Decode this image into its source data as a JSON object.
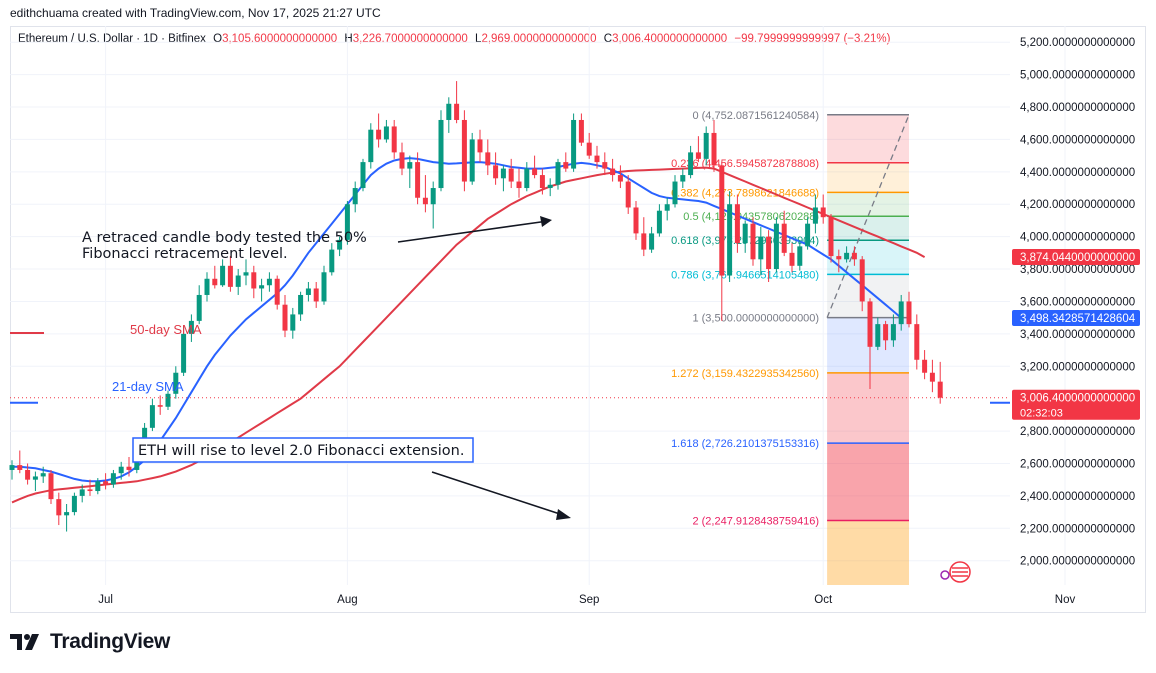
{
  "header": {
    "attribution": "edithchuama created with TradingView.com, Nov 17, 2025 21:27 UTC"
  },
  "legend": {
    "symbol": "Ethereum / U.S. Dollar · 1D · Bitfinex",
    "open_label": "O",
    "open": "3,105.6000000000000",
    "high_label": "H",
    "high": "3,226.7000000000000",
    "low_label": "L",
    "low": "2,969.0000000000000",
    "close_label": "C",
    "close": "3,006.4000000000000",
    "change": "−99.7999999999997 (−3.21%)"
  },
  "colors": {
    "up": "#089981",
    "down": "#f23645",
    "sma50": "#e03a48",
    "sma21": "#2962ff",
    "grid": "#f0f3fa",
    "text": "#131722"
  },
  "brand": {
    "name": "TradingView",
    "logo_icon": "tradingview-logo-icon"
  },
  "chart_data": {
    "type": "candlestick",
    "y_axis": {
      "ylim": [
        1850,
        5300
      ],
      "ticks": [
        {
          "value": 5200,
          "label": "5,200.0000000000000"
        },
        {
          "value": 5000,
          "label": "5,000.0000000000000"
        },
        {
          "value": 4800,
          "label": "4,800.0000000000000"
        },
        {
          "value": 4600,
          "label": "4,600.0000000000000"
        },
        {
          "value": 4400,
          "label": "4,400.0000000000000"
        },
        {
          "value": 4200,
          "label": "4,200.0000000000000"
        },
        {
          "value": 4000,
          "label": "4,000.0000000000000"
        },
        {
          "value": 3800,
          "label": "3,800.0000000000000"
        },
        {
          "value": 3600,
          "label": "3,600.0000000000000"
        },
        {
          "value": 3400,
          "label": "3,400.0000000000000"
        },
        {
          "value": 3200,
          "label": "3,200.0000000000000"
        },
        {
          "value": 2800,
          "label": "2,800.0000000000000"
        },
        {
          "value": 2600,
          "label": "2,600.0000000000000"
        },
        {
          "value": 2400,
          "label": "2,400.0000000000000"
        },
        {
          "value": 2200,
          "label": "2,200.0000000000000"
        },
        {
          "value": 2000,
          "label": "2,000.0000000000000"
        }
      ],
      "price_badges": [
        {
          "value": 3874,
          "label": "3,874.0440000000000",
          "color": "#f23645"
        },
        {
          "value": 3498,
          "label": "3,498.3428571428604",
          "color": "#2962ff"
        },
        {
          "value": 3006,
          "label": "3,006.4000000000000",
          "sublabel": "02:32:03",
          "color": "#f23645"
        }
      ]
    },
    "x_axis": {
      "ticks": [
        {
          "label": "Jul",
          "index": 12
        },
        {
          "label": "Aug",
          "index": 43
        },
        {
          "label": "Sep",
          "index": 74
        },
        {
          "label": "Oct",
          "index": 104
        },
        {
          "label": "Nov",
          "index": 135
        }
      ]
    },
    "candles": [
      [
        2560,
        2620,
        2500,
        2590
      ],
      [
        2590,
        2680,
        2540,
        2560
      ],
      [
        2560,
        2600,
        2470,
        2500
      ],
      [
        2500,
        2550,
        2430,
        2520
      ],
      [
        2520,
        2580,
        2480,
        2540
      ],
      [
        2540,
        2560,
        2350,
        2380
      ],
      [
        2380,
        2420,
        2220,
        2280
      ],
      [
        2280,
        2350,
        2180,
        2300
      ],
      [
        2300,
        2420,
        2280,
        2400
      ],
      [
        2400,
        2470,
        2360,
        2440
      ],
      [
        2440,
        2500,
        2400,
        2430
      ],
      [
        2430,
        2510,
        2410,
        2490
      ],
      [
        2490,
        2540,
        2440,
        2470
      ],
      [
        2470,
        2560,
        2450,
        2540
      ],
      [
        2540,
        2610,
        2500,
        2580
      ],
      [
        2580,
        2640,
        2520,
        2560
      ],
      [
        2560,
        2700,
        2540,
        2680
      ],
      [
        2680,
        2850,
        2650,
        2820
      ],
      [
        2820,
        3000,
        2800,
        2960
      ],
      [
        2960,
        3020,
        2900,
        2950
      ],
      [
        2950,
        3050,
        2930,
        3030
      ],
      [
        3030,
        3200,
        3000,
        3160
      ],
      [
        3160,
        3450,
        3140,
        3400
      ],
      [
        3400,
        3520,
        3350,
        3480
      ],
      [
        3480,
        3700,
        3460,
        3640
      ],
      [
        3640,
        3780,
        3600,
        3740
      ],
      [
        3740,
        3820,
        3680,
        3700
      ],
      [
        3700,
        3860,
        3690,
        3820
      ],
      [
        3820,
        3880,
        3660,
        3690
      ],
      [
        3690,
        3800,
        3640,
        3760
      ],
      [
        3760,
        3860,
        3700,
        3780
      ],
      [
        3780,
        3820,
        3620,
        3680
      ],
      [
        3680,
        3740,
        3600,
        3700
      ],
      [
        3700,
        3780,
        3660,
        3740
      ],
      [
        3740,
        3760,
        3550,
        3580
      ],
      [
        3580,
        3640,
        3380,
        3420
      ],
      [
        3420,
        3560,
        3370,
        3520
      ],
      [
        3520,
        3660,
        3480,
        3640
      ],
      [
        3640,
        3720,
        3600,
        3680
      ],
      [
        3680,
        3720,
        3560,
        3600
      ],
      [
        3600,
        3820,
        3580,
        3780
      ],
      [
        3780,
        3960,
        3760,
        3920
      ],
      [
        3920,
        4000,
        3880,
        3980
      ],
      [
        3980,
        4220,
        3950,
        4200
      ],
      [
        4200,
        4340,
        4150,
        4300
      ],
      [
        4300,
        4480,
        4280,
        4460
      ],
      [
        4460,
        4700,
        4420,
        4660
      ],
      [
        4660,
        4760,
        4550,
        4600
      ],
      [
        4600,
        4720,
        4580,
        4680
      ],
      [
        4680,
        4720,
        4480,
        4520
      ],
      [
        4520,
        4580,
        4380,
        4420
      ],
      [
        4420,
        4500,
        4300,
        4460
      ],
      [
        4460,
        4520,
        4200,
        4240
      ],
      [
        4240,
        4380,
        4150,
        4200
      ],
      [
        4200,
        4340,
        4050,
        4300
      ],
      [
        4300,
        4780,
        4280,
        4720
      ],
      [
        4720,
        4860,
        4640,
        4820
      ],
      [
        4820,
        4960,
        4700,
        4720
      ],
      [
        4720,
        4780,
        4280,
        4340
      ],
      [
        4340,
        4640,
        4320,
        4600
      ],
      [
        4600,
        4660,
        4460,
        4520
      ],
      [
        4520,
        4600,
        4380,
        4440
      ],
      [
        4440,
        4520,
        4320,
        4360
      ],
      [
        4360,
        4440,
        4280,
        4420
      ],
      [
        4420,
        4480,
        4300,
        4340
      ],
      [
        4340,
        4420,
        4240,
        4300
      ],
      [
        4300,
        4460,
        4280,
        4420
      ],
      [
        4420,
        4500,
        4360,
        4380
      ],
      [
        4380,
        4420,
        4260,
        4300
      ],
      [
        4300,
        4360,
        4250,
        4320
      ],
      [
        4320,
        4480,
        4290,
        4460
      ],
      [
        4460,
        4520,
        4400,
        4420
      ],
      [
        4420,
        4760,
        4400,
        4720
      ],
      [
        4720,
        4760,
        4560,
        4580
      ],
      [
        4580,
        4640,
        4480,
        4500
      ],
      [
        4500,
        4560,
        4420,
        4460
      ],
      [
        4460,
        4520,
        4380,
        4420
      ],
      [
        4420,
        4480,
        4340,
        4380
      ],
      [
        4380,
        4440,
        4300,
        4340
      ],
      [
        4340,
        4380,
        4140,
        4180
      ],
      [
        4180,
        4220,
        3980,
        4020
      ],
      [
        4020,
        4120,
        3880,
        3920
      ],
      [
        3920,
        4060,
        3900,
        4020
      ],
      [
        4020,
        4200,
        4000,
        4160
      ],
      [
        4160,
        4240,
        4100,
        4200
      ],
      [
        4200,
        4380,
        4180,
        4340
      ],
      [
        4340,
        4420,
        4300,
        4380
      ],
      [
        4380,
        4560,
        4360,
        4520
      ],
      [
        4520,
        4620,
        4460,
        4480
      ],
      [
        4480,
        4680,
        4440,
        4640
      ],
      [
        4640,
        4720,
        4400,
        4440
      ],
      [
        4440,
        4460,
        3480,
        3760
      ],
      [
        3760,
        4280,
        3720,
        4200
      ],
      [
        4200,
        4260,
        3900,
        3960
      ],
      [
        3960,
        4100,
        3900,
        4080
      ],
      [
        4080,
        4120,
        3820,
        3860
      ],
      [
        3860,
        4060,
        3760,
        4000
      ],
      [
        4000,
        4040,
        3720,
        3800
      ],
      [
        3800,
        4120,
        3780,
        4080
      ],
      [
        4080,
        4160,
        3880,
        3900
      ],
      [
        3900,
        3960,
        3780,
        3820
      ],
      [
        3820,
        3980,
        3790,
        3940
      ],
      [
        3940,
        4120,
        3920,
        4080
      ],
      [
        4080,
        4260,
        4020,
        4180
      ],
      [
        4180,
        4260,
        4080,
        4120
      ],
      [
        4120,
        4140,
        3840,
        3880
      ],
      [
        3880,
        3920,
        3780,
        3860
      ],
      [
        3860,
        3940,
        3840,
        3900
      ],
      [
        3900,
        3940,
        3820,
        3860
      ],
      [
        3860,
        3880,
        3540,
        3600
      ],
      [
        3600,
        3620,
        3060,
        3320
      ],
      [
        3320,
        3500,
        3300,
        3460
      ],
      [
        3460,
        3480,
        3300,
        3360
      ],
      [
        3360,
        3520,
        3320,
        3460
      ],
      [
        3460,
        3640,
        3420,
        3600
      ],
      [
        3600,
        3660,
        3440,
        3460
      ],
      [
        3460,
        3520,
        3180,
        3240
      ],
      [
        3240,
        3300,
        3120,
        3160
      ],
      [
        3160,
        3240,
        3040,
        3105
      ],
      [
        3105,
        3227,
        2969,
        3006
      ]
    ],
    "series": [
      {
        "name": "50-day SMA",
        "values": [
          2360,
          2380,
          2400,
          2415,
          2425,
          2435,
          2440,
          2445,
          2450,
          2455,
          2460,
          2465,
          2470,
          2475,
          2480,
          2485,
          2490,
          2500,
          2510,
          2520,
          2535,
          2550,
          2570,
          2590,
          2615,
          2640,
          2670,
          2700,
          2730,
          2760,
          2790,
          2820,
          2850,
          2880,
          2910,
          2940,
          2970,
          3000,
          3040,
          3080,
          3120,
          3160,
          3200,
          3250,
          3300,
          3350,
          3400,
          3450,
          3500,
          3550,
          3600,
          3650,
          3700,
          3750,
          3800,
          3850,
          3900,
          3950,
          3990,
          4030,
          4070,
          4110,
          4140,
          4170,
          4200,
          4225,
          4250,
          4270,
          4290,
          4310,
          4325,
          4340,
          4350,
          4360,
          4370,
          4380,
          4388,
          4395,
          4400,
          4405,
          4408,
          4410,
          4412,
          4414,
          4416,
          4418,
          4420,
          4422,
          4424,
          4426,
          4420,
          4400,
          4380,
          4360,
          4340,
          4320,
          4300,
          4280,
          4260,
          4240,
          4220,
          4200,
          4180,
          4160,
          4140,
          4120,
          4100,
          4080,
          4060,
          4040,
          4020,
          4000,
          3980,
          3960,
          3940,
          3920,
          3900,
          3874
        ]
      },
      {
        "name": "21-day SMA",
        "values": [
          2580,
          2580,
          2575,
          2570,
          2560,
          2550,
          2535,
          2520,
          2505,
          2495,
          2490,
          2490,
          2495,
          2505,
          2520,
          2545,
          2580,
          2620,
          2680,
          2740,
          2810,
          2880,
          2960,
          3040,
          3120,
          3200,
          3270,
          3330,
          3390,
          3440,
          3490,
          3530,
          3570,
          3610,
          3650,
          3700,
          3760,
          3830,
          3900,
          3960,
          4020,
          4080,
          4140,
          4200,
          4260,
          4320,
          4380,
          4420,
          4450,
          4470,
          4480,
          4485,
          4480,
          4470,
          4460,
          4455,
          4450,
          4452,
          4455,
          4458,
          4460,
          4455,
          4450,
          4440,
          4430,
          4425,
          4420,
          4420,
          4420,
          4425,
          4430,
          4440,
          4450,
          4455,
          4450,
          4440,
          4430,
          4410,
          4390,
          4360,
          4330,
          4300,
          4270,
          4250,
          4240,
          4235,
          4230,
          4225,
          4220,
          4210,
          4190,
          4170,
          4150,
          4130,
          4110,
          4090,
          4070,
          4050,
          4030,
          4010,
          3990,
          3970,
          3950,
          3920,
          3890,
          3860,
          3820,
          3780,
          3740,
          3700,
          3660,
          3620,
          3580,
          3540,
          3498
        ]
      }
    ],
    "fibonacci": {
      "levels": [
        {
          "ratio": "0",
          "label": "0 (4,752.0871561240584)",
          "value": 4752,
          "color": "#787b86"
        },
        {
          "ratio": "0.236",
          "label": "0.236 (4,456.5945872878808)",
          "value": 4456,
          "color": "#f23645"
        },
        {
          "ratio": "0.382",
          "label": "0.382 (4,273.7898621846688)",
          "value": 4273,
          "color": "#ff9800"
        },
        {
          "ratio": "0.5",
          "label": "0.5 (4,126.0435780620288)",
          "value": 4126,
          "color": "#4caf50"
        },
        {
          "ratio": "0.618",
          "label": "0.618 (3,978.2972936393904)",
          "value": 3978,
          "color": "#089981"
        },
        {
          "ratio": "0.786",
          "label": "0.786 (3,767.9466514105480)",
          "value": 3767,
          "color": "#00bcd4"
        },
        {
          "ratio": "1",
          "label": "1 (3,500.0000000000000)",
          "value": 3500,
          "color": "#787b86"
        },
        {
          "ratio": "1.272",
          "label": "1.272 (3,159.4322935342560)",
          "value": 3159,
          "color": "#ff9800"
        },
        {
          "ratio": "1.618",
          "label": "1.618 (2,726.2101375153316)",
          "value": 2726,
          "color": "#2962ff"
        },
        {
          "ratio": "2",
          "label": "2 (2,247.9128438759416)",
          "value": 2248,
          "color": "#e91e63"
        }
      ],
      "start_index": 104.5,
      "end_index": 115
    },
    "annotations": [
      {
        "text": "A retraced candle body tested the 50%",
        "line2": "Fibonacci retracement level."
      },
      {
        "text": "ETH  will rise to level 2.0 Fibonacci extension."
      },
      {
        "text": "50-day SMA"
      },
      {
        "text": "21-day SMA"
      }
    ]
  }
}
